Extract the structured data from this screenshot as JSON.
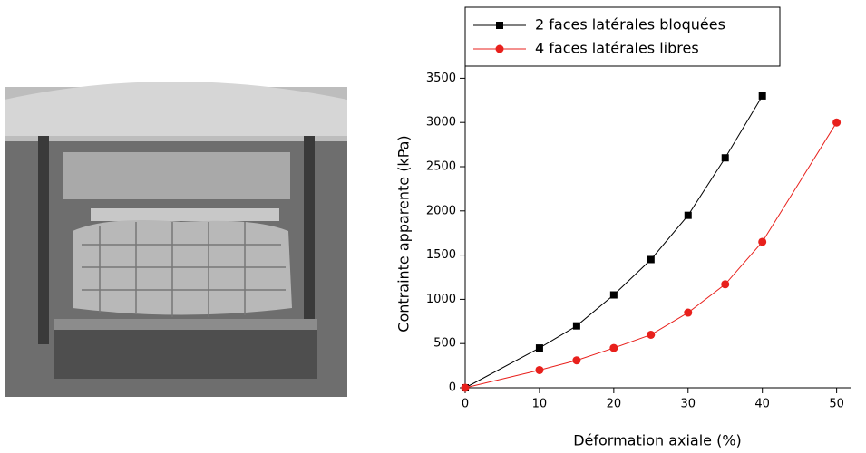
{
  "chart_data": {
    "type": "line",
    "x_label": "Déformation axiale (%)",
    "y_label": "Contrainte apparente (kPa)",
    "xlim": [
      0,
      52
    ],
    "xticks": [
      0,
      10,
      20,
      30,
      40,
      50
    ],
    "ylim": [
      0,
      3750
    ],
    "yticks": [
      0,
      500,
      1000,
      1500,
      2000,
      2500,
      3000,
      3500
    ],
    "legend": "top",
    "series": [
      {
        "name": "2 faces latérales bloquées",
        "color": "#000000",
        "marker": "square",
        "x": [
          0,
          10,
          15,
          20,
          25,
          30,
          35,
          40
        ],
        "values": [
          0,
          450,
          700,
          1050,
          1450,
          1950,
          2600,
          3300
        ]
      },
      {
        "name": "4 faces latérales libres",
        "color": "#e8201c",
        "marker": "circle",
        "x": [
          0,
          10,
          15,
          20,
          25,
          30,
          35,
          40,
          50
        ],
        "values": [
          0,
          200,
          310,
          450,
          600,
          850,
          1170,
          1650,
          3000
        ]
      }
    ]
  }
}
